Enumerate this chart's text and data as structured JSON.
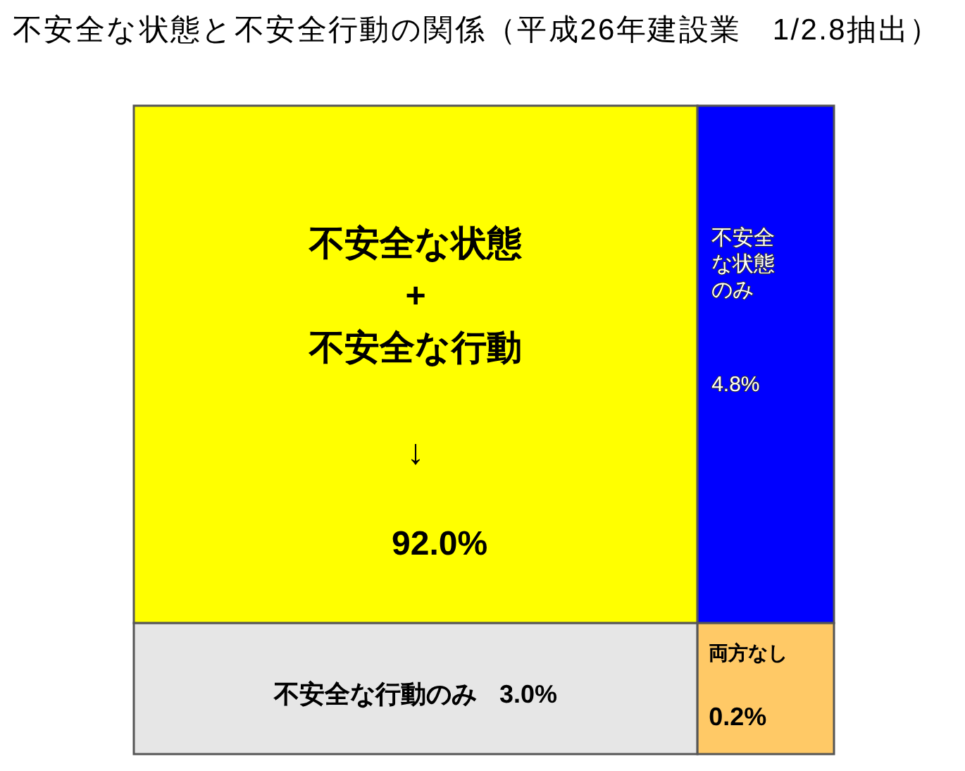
{
  "chart_data": {
    "type": "other",
    "title": "不安全な状態と不安全行動の関係（平成26年建設業　1/2.8抽出）",
    "categories": [
      "不安全な状態\n+\n不安全な行動\n\n↓",
      "不安全な状態のみ",
      "不安全な行動のみ",
      "両方なし"
    ],
    "values": [
      92.0,
      4.8,
      3.0,
      0.2
    ],
    "value_labels": [
      "92.0%",
      "4.8%",
      "3.0%",
      "0.2%"
    ],
    "colors": [
      "#ffff00",
      "#0000ff",
      "#e6e6e6",
      "#ffc966"
    ]
  }
}
